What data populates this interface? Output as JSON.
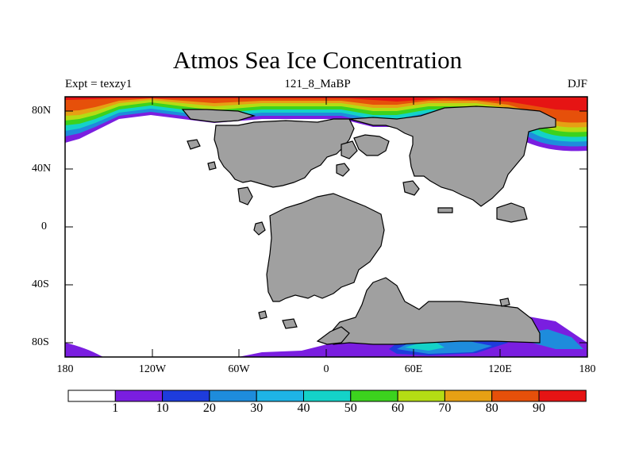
{
  "title": "Atmos Sea Ice Concentration",
  "subtitle_left": "Expt = texzy1",
  "subtitle_center": "121_8_MaBP",
  "subtitle_right": "DJF",
  "y_ticks": [
    "80N",
    "40N",
    "0",
    "40S",
    "80S"
  ],
  "x_ticks": [
    "180",
    "120W",
    "60W",
    "0",
    "60E",
    "120E",
    "180"
  ],
  "colorbar": {
    "labels": [
      "1",
      "10",
      "20",
      "30",
      "40",
      "50",
      "60",
      "70",
      "80",
      "90"
    ],
    "colors": [
      "#ffffff",
      "#7a1ee0",
      "#1e3cdc",
      "#1e8cdc",
      "#1eb4e6",
      "#14d2c8",
      "#3cd21e",
      "#b4dc14",
      "#e6a014",
      "#e6500a",
      "#e61414"
    ]
  },
  "colors": {
    "land": "#a0a0a0",
    "ocean": "#ffffff"
  }
}
